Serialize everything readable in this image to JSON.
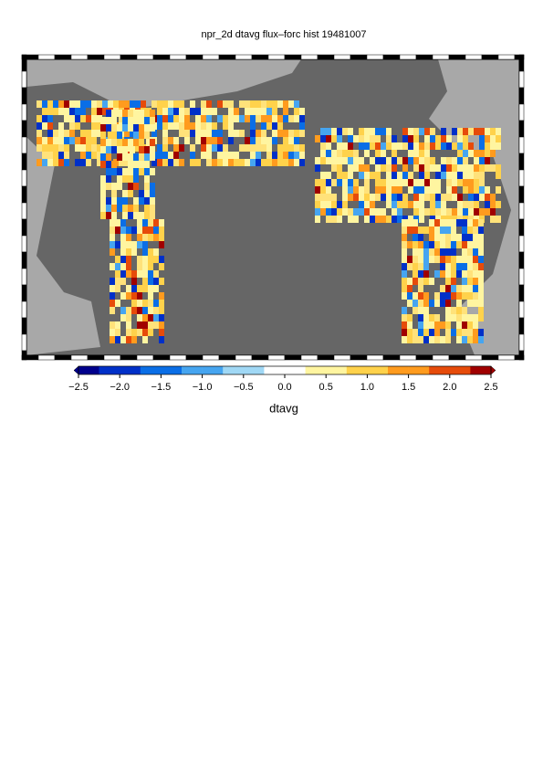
{
  "title": "npr_2d dtavg flux–forc hist 19481007",
  "colorbar": {
    "label": "dtavg",
    "lim": [
      -2.5,
      2.5
    ],
    "ticks": [
      {
        "value": -2.5,
        "label": "−2.5"
      },
      {
        "value": -2,
        "label": "−2.0"
      },
      {
        "value": -1.5,
        "label": "−1.5"
      },
      {
        "value": -1,
        "label": "−1.0"
      },
      {
        "value": -0.5,
        "label": "−0.5"
      },
      {
        "value": 0,
        "label": "0.0"
      },
      0.5,
      {
        "value": 1,
        "label": "1.0"
      },
      1.5,
      {
        "value": 2,
        "label": "2.0"
      },
      2.5
    ]
  }
}
